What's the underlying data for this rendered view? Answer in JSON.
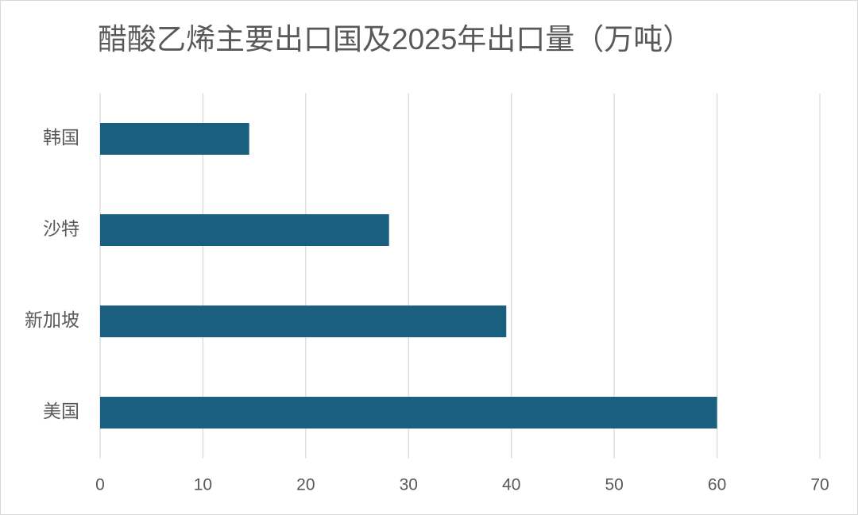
{
  "chart_data": {
    "type": "hbar",
    "title": "醋酸乙烯主要出口国及2025年出口量（万吨）",
    "categories": [
      "韩国",
      "沙特",
      "新加坡",
      "美国"
    ],
    "values": [
      14.5,
      28.1,
      39.5,
      60
    ],
    "color": "#1a5f7f",
    "xlim": [
      0,
      70
    ],
    "xticks": [
      0,
      10,
      20,
      30,
      40,
      50,
      60,
      70
    ],
    "grid": true
  }
}
